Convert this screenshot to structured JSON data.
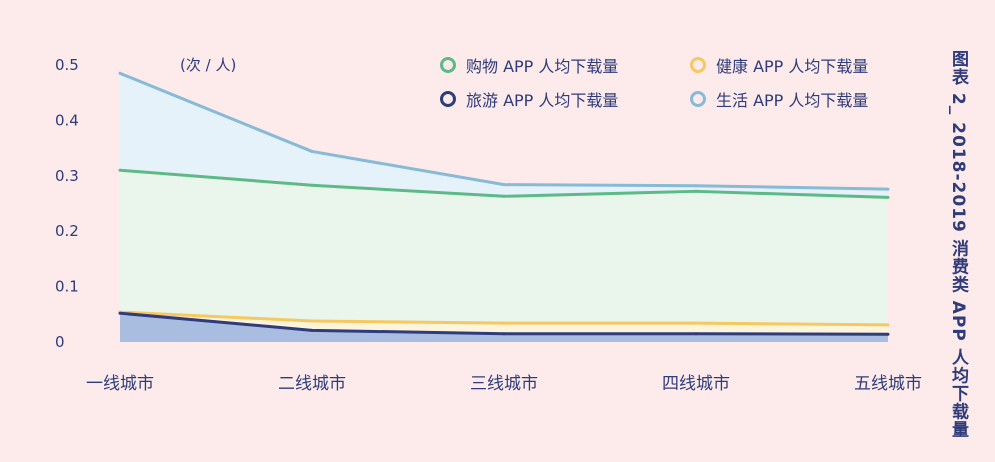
{
  "chart_data": {
    "type": "area",
    "title": "图表 2_ 2018-2019 消费类 APP 人均下载量",
    "unit_label": "(次 / 人)",
    "categories": [
      "一线城市",
      "二线城市",
      "三线城市",
      "四线城市",
      "五线城市"
    ],
    "ylim": [
      0,
      0.5
    ],
    "yticks": [
      "0",
      "0.1",
      "0.2",
      "0.3",
      "0.4",
      "0.5"
    ],
    "grid": false,
    "legend_position": "top-right",
    "series": [
      {
        "name": "购物 APP 人均下载量",
        "values": [
          0.31,
          0.283,
          0.263,
          0.272,
          0.261
        ],
        "color": "#5dba86",
        "fill": "#eaf5ec"
      },
      {
        "name": "健康 APP 人均下载量",
        "values": [
          0.054,
          0.038,
          0.034,
          0.034,
          0.031
        ],
        "color": "#f6c85f",
        "fill": "#fdf4dc"
      },
      {
        "name": "旅游 APP 人均下载量",
        "values": [
          0.052,
          0.021,
          0.015,
          0.015,
          0.014
        ],
        "color": "#2f3b7a",
        "fill": "#a9bde0"
      },
      {
        "name": "生活 APP 人均下载量",
        "values": [
          0.485,
          0.344,
          0.284,
          0.282,
          0.276
        ],
        "color": "#86bad6",
        "fill": "#e6f2fa"
      }
    ]
  }
}
